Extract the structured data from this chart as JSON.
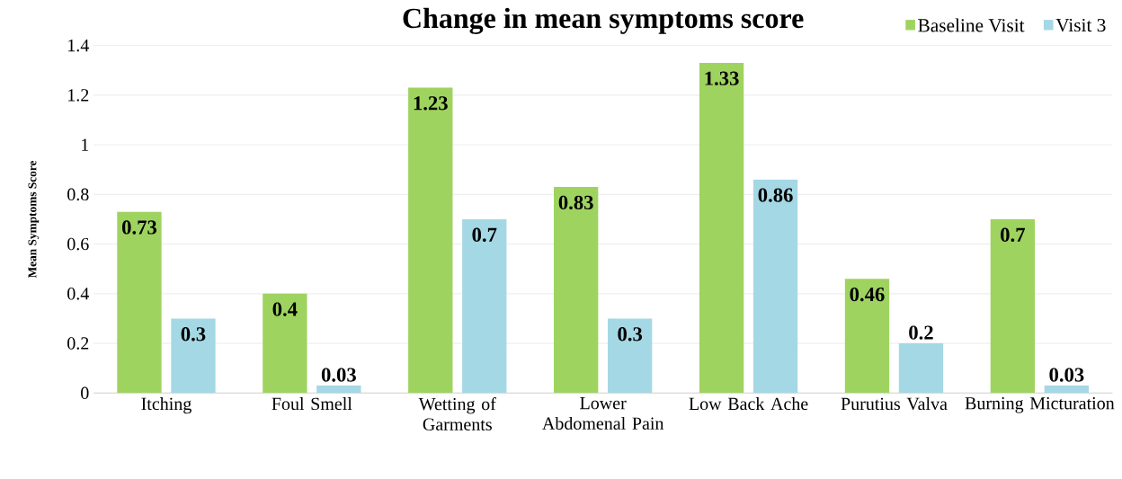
{
  "chart_data": {
    "type": "bar",
    "title": "Change in mean symptoms score",
    "ylabel": "Mean Symptoms Score",
    "categories": [
      "Itching",
      "Foul Smell",
      "Wetting of Garments",
      "Lower Abdomenal Pain",
      "Low Back Ache",
      "Purutius Valva",
      "Burning Micturation"
    ],
    "series": [
      {
        "name": "Baseline Visit",
        "color": "#9fd35f",
        "values": [
          0.73,
          0.4,
          1.23,
          0.83,
          1.33,
          0.46,
          0.7
        ]
      },
      {
        "name": "Visit 3",
        "color": "#a5d8e5",
        "values": [
          0.3,
          0.03,
          0.7,
          0.3,
          0.86,
          0.2,
          0.03
        ]
      }
    ],
    "ylim": [
      0,
      1.4
    ],
    "yticks": [
      0,
      0.2,
      0.4,
      0.6,
      0.8,
      1,
      1.2,
      1.4
    ],
    "grid": "y",
    "legend": "top right",
    "data_labels": true
  }
}
